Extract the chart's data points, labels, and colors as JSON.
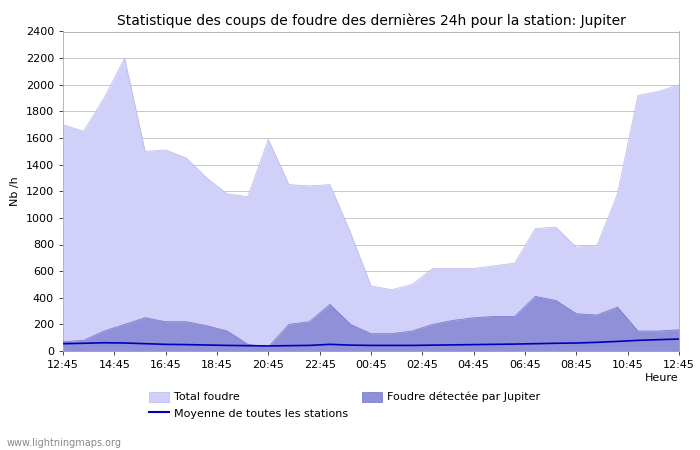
{
  "title": "Statistique des coups de foudre des dernières 24h pour la station: Jupiter",
  "xlabel": "Heure",
  "ylabel": "Nb /h",
  "watermark": "www.lightningmaps.org",
  "ylim": [
    0,
    2400
  ],
  "yticks": [
    0,
    200,
    400,
    600,
    800,
    1000,
    1200,
    1400,
    1600,
    1800,
    2000,
    2200,
    2400
  ],
  "xtick_labels": [
    "12:45",
    "14:45",
    "16:45",
    "18:45",
    "20:45",
    "22:45",
    "00:45",
    "02:45",
    "04:45",
    "06:45",
    "08:45",
    "10:45",
    "12:45"
  ],
  "bg_color": "#ffffff",
  "plot_bg_color": "#ffffff",
  "grid_color": "#c8c8c8",
  "total_color": "#d0d0f8",
  "local_color": "#9090d8",
  "mean_line_color": "#0000bb",
  "total_foudre": [
    1700,
    1650,
    1900,
    2200,
    1500,
    1510,
    1450,
    1300,
    1180,
    1160,
    1590,
    1250,
    1240,
    1250,
    890,
    490,
    460,
    500,
    620,
    620,
    620,
    640,
    660,
    920,
    930,
    780,
    790,
    1180,
    1920,
    1950,
    2000
  ],
  "local_foudre": [
    70,
    80,
    150,
    200,
    250,
    220,
    220,
    190,
    150,
    50,
    30,
    200,
    220,
    350,
    200,
    130,
    130,
    150,
    200,
    230,
    250,
    260,
    260,
    410,
    380,
    280,
    270,
    330,
    150,
    150,
    160
  ],
  "mean_line": [
    55,
    58,
    62,
    60,
    55,
    50,
    48,
    45,
    42,
    40,
    38,
    40,
    42,
    50,
    44,
    42,
    42,
    42,
    44,
    46,
    48,
    50,
    52,
    55,
    58,
    60,
    65,
    72,
    80,
    85,
    90
  ],
  "legend_total_label": "Total foudre",
  "legend_local_label": "Foudre détectée par Jupiter",
  "legend_mean_label": "Moyenne de toutes les stations",
  "title_fontsize": 10,
  "axis_fontsize": 8,
  "tick_fontsize": 8,
  "legend_fontsize": 8
}
